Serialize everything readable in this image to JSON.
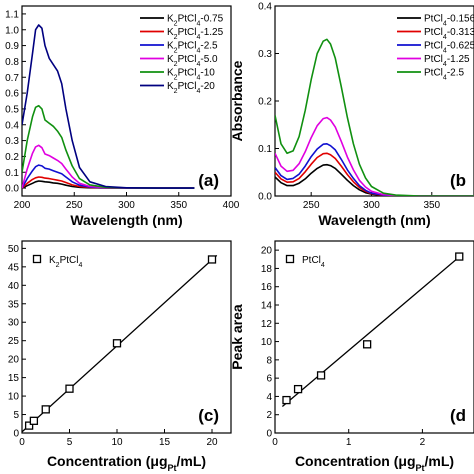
{
  "chart_data": [
    {
      "id": "a",
      "type": "line",
      "panel_label": "(a)",
      "xlabel": "Wavelength (nm)",
      "ylabel": "",
      "xlim": [
        200,
        400
      ],
      "ylim": [
        -0.05,
        1.15
      ],
      "xticks": [
        200,
        250,
        300,
        350,
        400
      ],
      "yticks": [
        0.0,
        0.1,
        0.2,
        0.3,
        0.4,
        0.5,
        0.6,
        0.7,
        0.8,
        0.9,
        1.0,
        1.1
      ],
      "x": [
        200,
        205,
        210,
        213,
        216,
        219,
        222,
        226,
        230,
        234,
        238,
        242,
        248,
        255,
        265,
        280,
        300,
        330,
        365
      ],
      "series": [
        {
          "name": "K₂PtCl₄-0.75",
          "color": "#000000",
          "values": [
            0.0,
            0.015,
            0.03,
            0.04,
            0.045,
            0.043,
            0.04,
            0.037,
            0.033,
            0.03,
            0.025,
            0.018,
            0.01,
            0.005,
            0.002,
            0.001,
            0.0,
            0.0,
            0.0
          ]
        },
        {
          "name": "K₂PtCl₄-1.25",
          "color": "#e00000",
          "values": [
            0.0,
            0.03,
            0.055,
            0.065,
            0.07,
            0.068,
            0.063,
            0.06,
            0.055,
            0.05,
            0.045,
            0.035,
            0.02,
            0.01,
            0.004,
            0.001,
            0.0,
            0.0,
            0.0
          ]
        },
        {
          "name": "K₂PtCl₄-2.5",
          "color": "#1010d0",
          "values": [
            0.0,
            0.06,
            0.11,
            0.135,
            0.145,
            0.14,
            0.125,
            0.12,
            0.11,
            0.1,
            0.09,
            0.07,
            0.04,
            0.018,
            0.006,
            0.002,
            0.0,
            0.0,
            0.0
          ]
        },
        {
          "name": "K₂PtCl₄-5.0",
          "color": "#e000e0",
          "values": [
            0.0,
            0.12,
            0.22,
            0.26,
            0.27,
            0.255,
            0.215,
            0.205,
            0.19,
            0.175,
            0.155,
            0.12,
            0.07,
            0.03,
            0.01,
            0.003,
            0.0,
            0.0,
            0.0
          ]
        },
        {
          "name": "K₂PtCl₄-10",
          "color": "#109010",
          "values": [
            0.1,
            0.3,
            0.45,
            0.51,
            0.52,
            0.5,
            0.43,
            0.41,
            0.39,
            0.36,
            0.32,
            0.24,
            0.14,
            0.06,
            0.02,
            0.005,
            0.001,
            0.0,
            0.0
          ]
        },
        {
          "name": "K₂PtCl₄-20",
          "color": "#000080",
          "values": [
            0.4,
            0.6,
            0.85,
            1.0,
            1.03,
            1.01,
            0.9,
            0.82,
            0.78,
            0.74,
            0.66,
            0.5,
            0.3,
            0.13,
            0.04,
            0.01,
            0.002,
            0.0,
            0.0
          ]
        }
      ]
    },
    {
      "id": "b",
      "type": "line",
      "panel_label": "(b",
      "xlabel": "Wavelength (nm)",
      "ylabel": "Absorbance",
      "xlim": [
        220,
        385
      ],
      "ylim": [
        0.0,
        0.4
      ],
      "xticks": [
        250,
        300,
        350
      ],
      "yticks": [
        0.0,
        0.1,
        0.2,
        0.3,
        0.4
      ],
      "x": [
        220,
        225,
        230,
        235,
        240,
        245,
        250,
        255,
        260,
        263,
        266,
        270,
        275,
        280,
        285,
        290,
        295,
        300,
        310,
        320,
        340,
        360,
        385
      ],
      "series": [
        {
          "name": "PtCl₄-0.156",
          "color": "#000000",
          "values": [
            0.04,
            0.028,
            0.022,
            0.022,
            0.027,
            0.036,
            0.048,
            0.058,
            0.065,
            0.066,
            0.064,
            0.058,
            0.046,
            0.033,
            0.022,
            0.013,
            0.007,
            0.004,
            0.001,
            0.0,
            0.0,
            0.0,
            0.0
          ]
        },
        {
          "name": "PtCl₄-0.313",
          "color": "#e00000",
          "values": [
            0.05,
            0.036,
            0.029,
            0.03,
            0.037,
            0.051,
            0.067,
            0.081,
            0.089,
            0.09,
            0.087,
            0.079,
            0.063,
            0.045,
            0.03,
            0.018,
            0.01,
            0.005,
            0.001,
            0.0,
            0.0,
            0.0,
            0.0
          ]
        },
        {
          "name": "PtCl₄-0.625",
          "color": "#1010d0",
          "values": [
            0.06,
            0.043,
            0.035,
            0.037,
            0.046,
            0.063,
            0.083,
            0.099,
            0.109,
            0.11,
            0.106,
            0.097,
            0.077,
            0.055,
            0.037,
            0.022,
            0.012,
            0.006,
            0.002,
            0.0,
            0.0,
            0.0,
            0.0
          ]
        },
        {
          "name": "PtCl₄-1.25",
          "color": "#e000e0",
          "values": [
            0.09,
            0.063,
            0.052,
            0.054,
            0.068,
            0.093,
            0.123,
            0.148,
            0.163,
            0.165,
            0.16,
            0.145,
            0.115,
            0.082,
            0.055,
            0.033,
            0.019,
            0.01,
            0.003,
            0.001,
            0.0,
            0.0,
            0.0
          ]
        },
        {
          "name": "PtCl₄-2.5",
          "color": "#109010",
          "values": [
            0.17,
            0.11,
            0.09,
            0.095,
            0.125,
            0.18,
            0.245,
            0.3,
            0.326,
            0.33,
            0.32,
            0.29,
            0.23,
            0.165,
            0.11,
            0.067,
            0.038,
            0.02,
            0.006,
            0.002,
            0.0,
            0.0,
            0.0
          ]
        }
      ]
    },
    {
      "id": "c",
      "type": "scatter",
      "panel_label": "(c)",
      "xlabel": "Concentration (μgPt/mL)",
      "ylabel": "",
      "xlim": [
        0,
        22
      ],
      "ylim": [
        0,
        52
      ],
      "xticks": [
        0,
        5,
        10,
        15,
        20
      ],
      "yticks": [
        0,
        5,
        10,
        15,
        20,
        25,
        30,
        35,
        40,
        45,
        50
      ],
      "legend": "K₂PtCl₄",
      "x": [
        0.75,
        1.25,
        2.5,
        5.0,
        10,
        20
      ],
      "y": [
        2.0,
        3.3,
        6.4,
        12.0,
        24.3,
        47.0
      ],
      "fit_line": {
        "x": [
          0.0,
          20.5
        ],
        "y": [
          0.3,
          48.1
        ]
      }
    },
    {
      "id": "d",
      "type": "scatter",
      "panel_label": "(d",
      "xlabel": "Concentration (μgPt/mL)",
      "ylabel": "Peak area",
      "xlim": [
        0,
        2.7
      ],
      "ylim": [
        0,
        21
      ],
      "xticks": [
        0,
        1,
        2
      ],
      "yticks": [
        0,
        2,
        4,
        6,
        8,
        10,
        12,
        14,
        16,
        18,
        20
      ],
      "legend": "PtCl₄",
      "x": [
        0.156,
        0.313,
        0.625,
        1.25,
        2.5
      ],
      "y": [
        3.6,
        4.8,
        6.3,
        9.7,
        19.3
      ],
      "fit_line": {
        "x": [
          0.1,
          2.55
        ],
        "y": [
          2.9,
          19.6
        ]
      }
    }
  ],
  "notes": {
    "conc_prefix": "Concentration (",
    "conc_mu": "μg",
    "conc_sub": "Pt",
    "conc_suffix": "/mL)"
  }
}
